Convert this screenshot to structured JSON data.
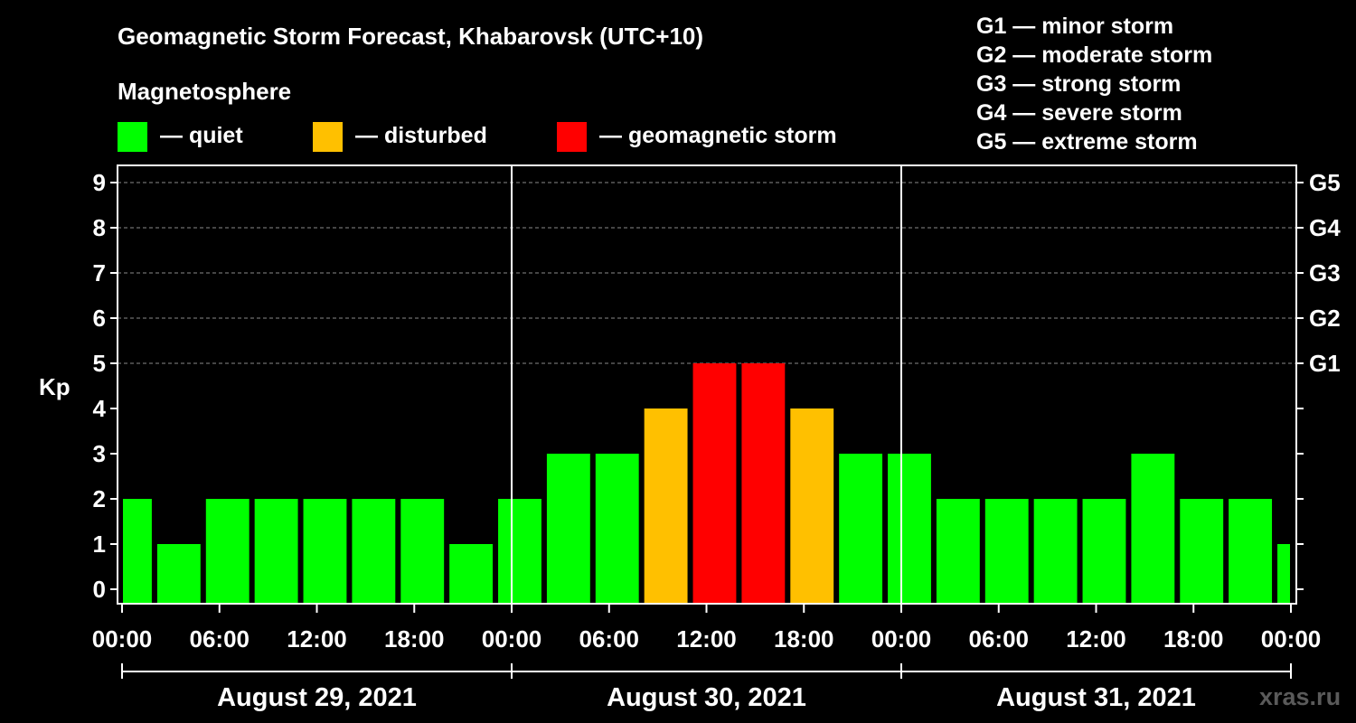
{
  "chart_data": {
    "type": "bar",
    "title": "Geomagnetic Storm Forecast, Khabarovsk (UTC+10)",
    "ylabel": "Kp",
    "ylim": [
      0,
      9
    ],
    "legend_title": "Magnetosphere",
    "legend": [
      {
        "label": "— quiet",
        "color": "#00ff00"
      },
      {
        "label": "— disturbed",
        "color": "#ffc000"
      },
      {
        "label": "— geomagnetic storm",
        "color": "#ff0000"
      }
    ],
    "storm_scale": [
      "G1 — minor storm",
      "G2 — moderate storm",
      "G3 — strong storm",
      "G4 — severe storm",
      "G5 — extreme storm"
    ],
    "g_levels": [
      {
        "label": "G1",
        "kp": 5
      },
      {
        "label": "G2",
        "kp": 6
      },
      {
        "label": "G3",
        "kp": 7
      },
      {
        "label": "G4",
        "kp": 8
      },
      {
        "label": "G5",
        "kp": 9
      }
    ],
    "y_ticks": [
      "0",
      "1",
      "2",
      "3",
      "4",
      "5",
      "6",
      "7",
      "8",
      "9"
    ],
    "x_ticks": [
      "00:00",
      "06:00",
      "12:00",
      "18:00",
      "00:00",
      "06:00",
      "12:00",
      "18:00",
      "00:00",
      "06:00",
      "12:00",
      "18:00",
      "00:00"
    ],
    "days": [
      "August 29, 2021",
      "August 30, 2021",
      "August 31, 2021"
    ],
    "interval_hours": 3,
    "first_bar_offset_hours": -1,
    "values": [
      2,
      1,
      2,
      2,
      2,
      2,
      2,
      1,
      2,
      3,
      3,
      4,
      5,
      5,
      4,
      3,
      3,
      2,
      2,
      2,
      2,
      3,
      2,
      2,
      1
    ],
    "colors": {
      "quiet": "#00ff00",
      "disturbed": "#ffc000",
      "storm": "#ff0000"
    },
    "grid": true
  },
  "watermark": "xras.ru"
}
